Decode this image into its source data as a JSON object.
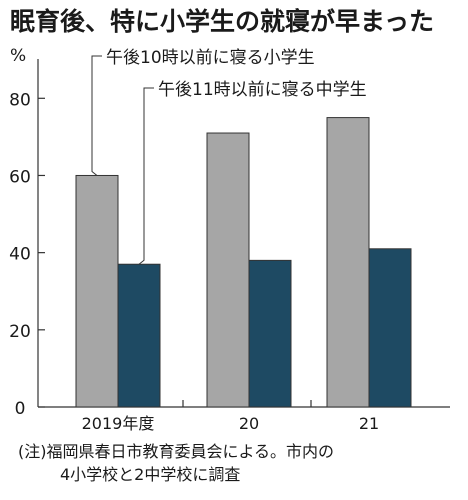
{
  "title": "眠育後、特に小学生の就寝が早まった",
  "chart_data": {
    "type": "bar",
    "unit": "%",
    "categories": [
      "2019年度",
      "20",
      "21"
    ],
    "series": [
      {
        "name": "午後10時以前に寝る小学生",
        "values": [
          60,
          71,
          75
        ],
        "color": "#a6a6a6"
      },
      {
        "name": "午後11時以前に寝る中学生",
        "values": [
          37,
          38,
          41
        ],
        "color": "#1e4a63"
      }
    ],
    "ylim": [
      0,
      85
    ],
    "yticks": [
      0,
      20,
      40,
      60,
      80
    ],
    "legend": "top-left, callout labels pointing to 2019 bars",
    "grid": false
  },
  "note": {
    "line1": "(注)福岡県春日市教育委員会による。市内の",
    "line2": "4小学校と2中学校に調査"
  }
}
